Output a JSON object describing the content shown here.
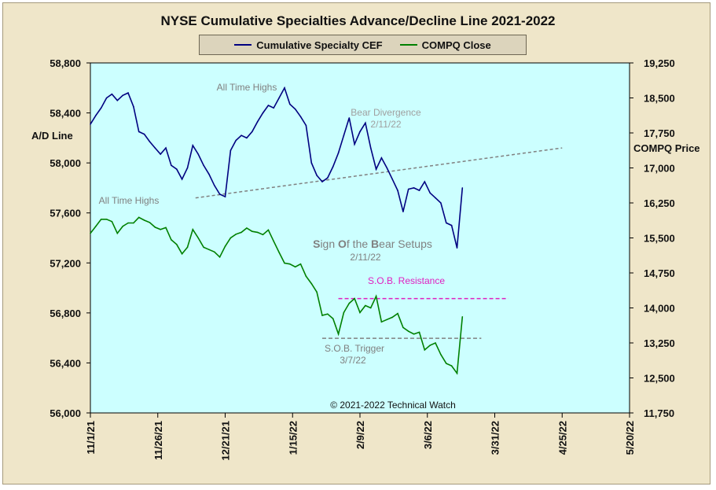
{
  "chart_data": {
    "type": "line",
    "title": "NYSE Cumulative  Specialties  Advance/Decline  Line  2021-2022",
    "ylabel_left": "A/D Line",
    "ylabel_right": "COMPQ Price",
    "copyright": "© 2021-2022  Technical  Watch",
    "ylim_left": [
      56000,
      58800
    ],
    "yticks_left": [
      "58,800",
      "58,400",
      "58,000",
      "57,600",
      "57,200",
      "56,800",
      "56,400",
      "56,000"
    ],
    "ylim_right": [
      11750,
      19250
    ],
    "yticks_right": [
      "19,250",
      "18,500",
      "17,750",
      "17,000",
      "16,250",
      "15,500",
      "14,750",
      "14,000",
      "13,250",
      "12,500",
      "11,750"
    ],
    "xlim": [
      "2021-11-01",
      "2022-05-20"
    ],
    "xticks": [
      "11/1/21",
      "11/26/21",
      "12/21/21",
      "1/15/22",
      "2/9/22",
      "3/6/22",
      "3/31/22",
      "4/25/22",
      "5/20/22"
    ],
    "plot_background": "#ccffff",
    "grid": false,
    "legend_position": "top",
    "series": [
      {
        "name": "Cumulative Specialty CEF",
        "axis": "left",
        "color": "#000080",
        "x_dates": [
          "2021-11-01",
          "2021-11-03",
          "2021-11-05",
          "2021-11-07",
          "2021-11-09",
          "2021-11-11",
          "2021-11-13",
          "2021-11-15",
          "2021-11-17",
          "2021-11-19",
          "2021-11-21",
          "2021-11-23",
          "2021-11-25",
          "2021-11-27",
          "2021-11-29",
          "2021-12-01",
          "2021-12-03",
          "2021-12-05",
          "2021-12-07",
          "2021-12-09",
          "2021-12-11",
          "2021-12-13",
          "2021-12-15",
          "2021-12-17",
          "2021-12-19",
          "2021-12-21",
          "2021-12-23",
          "2021-12-25",
          "2021-12-27",
          "2021-12-29",
          "2021-12-31",
          "2022-01-02",
          "2022-01-04",
          "2022-01-06",
          "2022-01-08",
          "2022-01-10",
          "2022-01-12",
          "2022-01-14",
          "2022-01-16",
          "2022-01-18",
          "2022-01-20",
          "2022-01-22",
          "2022-01-24",
          "2022-01-26",
          "2022-01-28",
          "2022-01-30",
          "2022-02-01",
          "2022-02-03",
          "2022-02-05",
          "2022-02-07",
          "2022-02-09",
          "2022-02-11",
          "2022-02-13",
          "2022-02-15",
          "2022-02-17",
          "2022-02-19",
          "2022-02-21",
          "2022-02-23",
          "2022-02-25",
          "2022-02-27",
          "2022-03-01",
          "2022-03-03",
          "2022-03-05",
          "2022-03-07",
          "2022-03-09",
          "2022-03-11",
          "2022-03-13",
          "2022-03-15",
          "2022-03-17",
          "2022-03-19"
        ],
        "values": [
          58310,
          58380,
          58440,
          58520,
          58550,
          58500,
          58540,
          58560,
          58450,
          58250,
          58230,
          58170,
          58120,
          58070,
          58120,
          57980,
          57950,
          57870,
          57960,
          58140,
          58070,
          57980,
          57910,
          57820,
          57750,
          57730,
          58100,
          58180,
          58220,
          58200,
          58250,
          58330,
          58400,
          58460,
          58440,
          58520,
          58600,
          58470,
          58430,
          58370,
          58300,
          58000,
          57900,
          57850,
          57880,
          57970,
          58080,
          58220,
          58360,
          58150,
          58250,
          58320,
          58120,
          57950,
          58040,
          57960,
          57870,
          57780,
          57610,
          57790,
          57800,
          57780,
          57850,
          57760,
          57720,
          57680,
          57520,
          57500,
          57320,
          57800
        ]
      },
      {
        "name": "COMPQ Close",
        "axis": "right",
        "color": "#008000",
        "x_dates": [
          "2021-11-01",
          "2021-11-03",
          "2021-11-05",
          "2021-11-07",
          "2021-11-09",
          "2021-11-11",
          "2021-11-13",
          "2021-11-15",
          "2021-11-17",
          "2021-11-19",
          "2021-11-21",
          "2021-11-23",
          "2021-11-25",
          "2021-11-27",
          "2021-11-29",
          "2021-12-01",
          "2021-12-03",
          "2021-12-05",
          "2021-12-07",
          "2021-12-09",
          "2021-12-11",
          "2021-12-13",
          "2021-12-15",
          "2021-12-17",
          "2021-12-19",
          "2021-12-21",
          "2021-12-23",
          "2021-12-25",
          "2021-12-27",
          "2021-12-29",
          "2021-12-31",
          "2022-01-02",
          "2022-01-04",
          "2022-01-06",
          "2022-01-08",
          "2022-01-10",
          "2022-01-12",
          "2022-01-14",
          "2022-01-16",
          "2022-01-18",
          "2022-01-20",
          "2022-01-22",
          "2022-01-24",
          "2022-01-26",
          "2022-01-28",
          "2022-01-30",
          "2022-02-01",
          "2022-02-03",
          "2022-02-05",
          "2022-02-07",
          "2022-02-09",
          "2022-02-11",
          "2022-02-13",
          "2022-02-15",
          "2022-02-17",
          "2022-02-19",
          "2022-02-21",
          "2022-02-23",
          "2022-02-25",
          "2022-02-27",
          "2022-03-01",
          "2022-03-03",
          "2022-03-05",
          "2022-03-07",
          "2022-03-09",
          "2022-03-11",
          "2022-03-13",
          "2022-03-15",
          "2022-03-17",
          "2022-03-19"
        ],
        "values": [
          15600,
          15750,
          15900,
          15900,
          15850,
          15600,
          15750,
          15820,
          15820,
          15940,
          15880,
          15830,
          15730,
          15680,
          15720,
          15460,
          15360,
          15160,
          15300,
          15680,
          15500,
          15300,
          15250,
          15200,
          15090,
          15320,
          15500,
          15580,
          15620,
          15710,
          15640,
          15620,
          15570,
          15670,
          15430,
          15190,
          14960,
          14940,
          14880,
          14940,
          14680,
          14520,
          14340,
          13840,
          13870,
          13770,
          13440,
          13900,
          14100,
          14200,
          13900,
          14050,
          14000,
          14250,
          13700,
          13750,
          13800,
          13880,
          13580,
          13500,
          13440,
          13480,
          13100,
          13200,
          13250,
          13000,
          12810,
          12760,
          12600,
          13810
        ]
      }
    ],
    "annotations": [
      {
        "text": "All Time Highs",
        "color": "#808080"
      },
      {
        "text": "Bear Divergence",
        "color": "#a0a0a0"
      },
      {
        "text": "2/11/22",
        "color": "#a0a0a0"
      },
      {
        "text": "All Time Highs",
        "color": "#808080"
      },
      {
        "text_bold_1": "S",
        "text_1": "ign ",
        "text_bold_2": "O",
        "text_2": "f the ",
        "text_bold_3": "B",
        "text_3": "ear Setups",
        "color": "#808080"
      },
      {
        "text": "2/11/22",
        "color": "#808080"
      },
      {
        "text": "S.O.B. Resistance",
        "color": "#e020c0"
      },
      {
        "text": "S.O.B. Trigger",
        "color": "#808080"
      },
      {
        "text": "3/7/22",
        "color": "#808080"
      }
    ],
    "trendline_ad": {
      "axis": "left",
      "color": "#808080",
      "start": [
        "2021-12-10",
        57720
      ],
      "end": [
        "2022-04-25",
        58120
      ]
    },
    "resistance_line": {
      "axis": "right",
      "color": "#e020c0",
      "start": [
        "2022-02-01",
        14200
      ],
      "end": [
        "2022-04-05",
        14200
      ]
    },
    "trigger_line": {
      "axis": "right",
      "color": "#808080",
      "start": [
        "2022-01-26",
        13350
      ],
      "end": [
        "2022-03-26",
        13350
      ]
    }
  }
}
